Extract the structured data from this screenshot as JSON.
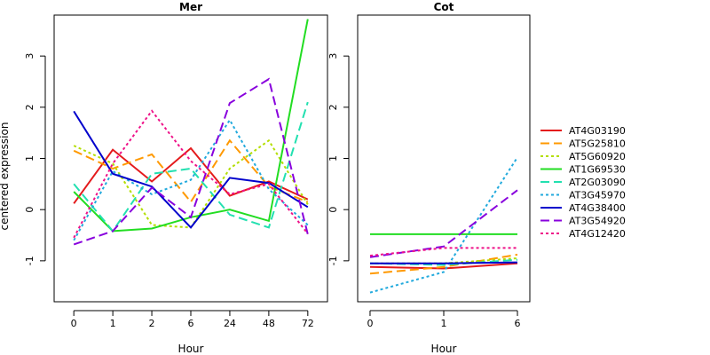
{
  "chart_data": [
    {
      "type": "line",
      "title": "Mer",
      "xlabel": "Hour",
      "ylabel": "centered expression",
      "categories": [
        "0",
        "1",
        "2",
        "6",
        "24",
        "48",
        "72"
      ],
      "ylim": [
        -1.8,
        3.8
      ],
      "yticks": [
        -1,
        0,
        1,
        2,
        3
      ],
      "series": [
        {
          "name": "AT4G03190",
          "color": "#e41a1c",
          "dash": "solid",
          "values": [
            0.12,
            1.17,
            0.55,
            1.2,
            0.27,
            0.55,
            0.2
          ]
        },
        {
          "name": "AT5G25810",
          "color": "#ff9900",
          "dash": "long",
          "values": [
            1.15,
            0.8,
            1.08,
            0.15,
            1.35,
            0.45,
            0.15
          ]
        },
        {
          "name": "AT5G60920",
          "color": "#b3de00",
          "dash": "short",
          "values": [
            1.25,
            0.9,
            -0.3,
            -0.35,
            0.8,
            1.35,
            0.1
          ]
        },
        {
          "name": "AT1G69530",
          "color": "#22dd22",
          "dash": "solid",
          "values": [
            0.35,
            -0.42,
            -0.37,
            -0.15,
            0.0,
            -0.22,
            3.72
          ]
        },
        {
          "name": "AT2G03090",
          "color": "#22e0b0",
          "dash": "long",
          "values": [
            0.5,
            -0.42,
            0.7,
            0.8,
            -0.1,
            -0.35,
            2.1
          ]
        },
        {
          "name": "AT3G45970",
          "color": "#22aadd",
          "dash": "short",
          "values": [
            -0.6,
            0.75,
            0.3,
            0.58,
            1.75,
            0.4,
            -0.3
          ]
        },
        {
          "name": "AT4G38400",
          "color": "#0000cc",
          "dash": "solid",
          "values": [
            1.92,
            0.7,
            0.45,
            -0.35,
            0.62,
            0.52,
            0.05
          ]
        },
        {
          "name": "AT3G54920",
          "color": "#8800dd",
          "dash": "long",
          "values": [
            -0.68,
            -0.42,
            0.43,
            -0.15,
            2.08,
            2.55,
            -0.48
          ]
        },
        {
          "name": "AT4G12420",
          "color": "#ee1188",
          "dash": "short",
          "values": [
            -0.55,
            0.9,
            1.93,
            0.95,
            0.3,
            0.5,
            -0.47
          ]
        }
      ]
    },
    {
      "type": "line",
      "title": "Cot",
      "xlabel": "Hour",
      "categories": [
        "0",
        "1",
        "6"
      ],
      "ylim": [
        -1.8,
        3.8
      ],
      "yticks": [
        -1,
        0,
        1,
        2,
        3
      ],
      "series": [
        {
          "name": "AT4G03190",
          "color": "#e41a1c",
          "dash": "solid",
          "values": [
            -1.12,
            -1.15,
            -1.05
          ]
        },
        {
          "name": "AT5G25810",
          "color": "#ff9900",
          "dash": "long",
          "values": [
            -1.25,
            -1.12,
            -0.88
          ]
        },
        {
          "name": "AT5G60920",
          "color": "#b3de00",
          "dash": "short",
          "values": [
            -1.05,
            -1.05,
            -0.95
          ]
        },
        {
          "name": "AT1G69530",
          "color": "#22dd22",
          "dash": "solid",
          "values": [
            -0.48,
            -0.48,
            -0.48
          ]
        },
        {
          "name": "AT2G03090",
          "color": "#22e0b0",
          "dash": "long",
          "values": [
            -1.05,
            -1.08,
            -0.98
          ]
        },
        {
          "name": "AT3G45970",
          "color": "#22aadd",
          "dash": "short",
          "values": [
            -1.62,
            -1.22,
            1.02
          ]
        },
        {
          "name": "AT4G38400",
          "color": "#0000cc",
          "dash": "solid",
          "values": [
            -1.05,
            -1.05,
            -1.03
          ]
        },
        {
          "name": "AT3G54920",
          "color": "#8800dd",
          "dash": "long",
          "values": [
            -0.93,
            -0.72,
            0.38
          ]
        },
        {
          "name": "AT4G12420",
          "color": "#ee1188",
          "dash": "short",
          "values": [
            -0.9,
            -0.75,
            -0.75
          ]
        }
      ]
    }
  ]
}
